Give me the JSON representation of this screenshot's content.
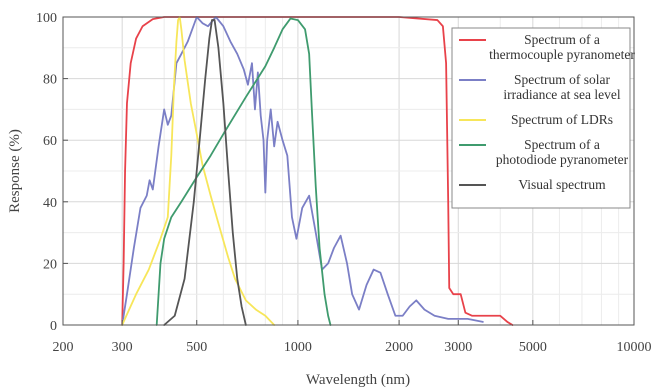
{
  "chart_data": {
    "type": "line",
    "xscale": "log",
    "xlim": [
      200,
      10000
    ],
    "ylim": [
      0,
      100
    ],
    "xlabel": "Wavelength  (nm)",
    "ylabel": "Response (%)",
    "xticks": [
      200,
      300,
      500,
      1000,
      2000,
      3000,
      5000,
      10000
    ],
    "xtick_labels": [
      "200",
      "300",
      "500",
      "1000",
      "2000",
      "3000",
      "5000",
      "10000"
    ],
    "yticks": [
      0,
      20,
      40,
      60,
      80,
      100
    ],
    "ytick_labels": [
      "0",
      "20",
      "40",
      "60",
      "80",
      "100"
    ],
    "grid": true,
    "legend_position": "top-right",
    "series": [
      {
        "name": "Spectrum of a thermocouple pyranometer",
        "legend_lines": [
          "Spectrum of a",
          "thermocouple pyranometer"
        ],
        "color": "#e8424a",
        "points": [
          [
            300,
            0
          ],
          [
            303,
            20
          ],
          [
            306,
            50
          ],
          [
            310,
            72
          ],
          [
            318,
            85
          ],
          [
            330,
            93
          ],
          [
            345,
            97
          ],
          [
            370,
            99.3
          ],
          [
            400,
            100
          ],
          [
            1000,
            100
          ],
          [
            2000,
            100
          ],
          [
            2600,
            99
          ],
          [
            2700,
            97
          ],
          [
            2760,
            85
          ],
          [
            2800,
            40
          ],
          [
            2820,
            12
          ],
          [
            2900,
            10
          ],
          [
            3050,
            10
          ],
          [
            3150,
            4
          ],
          [
            3300,
            3
          ],
          [
            3700,
            3
          ],
          [
            4000,
            3
          ],
          [
            4200,
            1
          ],
          [
            4350,
            0
          ]
        ]
      },
      {
        "name": "Spectrum of solar irradiance at sea level",
        "legend_lines": [
          "Spectrum of solar",
          "irradiance at sea level"
        ],
        "color": "#7b7fc6",
        "points": [
          [
            300,
            0
          ],
          [
            310,
            10
          ],
          [
            325,
            25
          ],
          [
            340,
            38
          ],
          [
            355,
            42
          ],
          [
            362,
            47
          ],
          [
            370,
            44
          ],
          [
            385,
            58
          ],
          [
            400,
            70
          ],
          [
            410,
            65
          ],
          [
            420,
            68
          ],
          [
            435,
            85
          ],
          [
            450,
            88
          ],
          [
            470,
            92
          ],
          [
            500,
            100
          ],
          [
            520,
            98
          ],
          [
            540,
            97
          ],
          [
            570,
            100
          ],
          [
            600,
            97
          ],
          [
            630,
            92
          ],
          [
            660,
            88
          ],
          [
            690,
            83
          ],
          [
            710,
            78
          ],
          [
            730,
            85
          ],
          [
            745,
            70
          ],
          [
            760,
            82
          ],
          [
            775,
            68
          ],
          [
            790,
            60
          ],
          [
            800,
            43
          ],
          [
            810,
            60
          ],
          [
            830,
            70
          ],
          [
            850,
            58
          ],
          [
            870,
            66
          ],
          [
            900,
            60
          ],
          [
            930,
            55
          ],
          [
            960,
            35
          ],
          [
            990,
            28
          ],
          [
            1030,
            38
          ],
          [
            1080,
            42
          ],
          [
            1130,
            30
          ],
          [
            1180,
            18
          ],
          [
            1230,
            20
          ],
          [
            1280,
            25
          ],
          [
            1340,
            29
          ],
          [
            1400,
            20
          ],
          [
            1450,
            10
          ],
          [
            1520,
            5
          ],
          [
            1600,
            13
          ],
          [
            1680,
            18
          ],
          [
            1760,
            17
          ],
          [
            1850,
            10
          ],
          [
            1950,
            3
          ],
          [
            2050,
            3
          ],
          [
            2150,
            6
          ],
          [
            2250,
            8
          ],
          [
            2380,
            5
          ],
          [
            2550,
            3
          ],
          [
            2800,
            2
          ],
          [
            3200,
            2
          ],
          [
            3550,
            1
          ]
        ]
      },
      {
        "name": "Spectrum of LDRs",
        "legend_lines": [
          "Spectrum of LDRs"
        ],
        "color": "#f7e65a",
        "points": [
          [
            300,
            0
          ],
          [
            330,
            10
          ],
          [
            360,
            18
          ],
          [
            390,
            28
          ],
          [
            410,
            35
          ],
          [
            420,
            55
          ],
          [
            428,
            78
          ],
          [
            435,
            92
          ],
          [
            440,
            99
          ],
          [
            445,
            100
          ],
          [
            450,
            96
          ],
          [
            460,
            86
          ],
          [
            480,
            72
          ],
          [
            500,
            62
          ],
          [
            520,
            52
          ],
          [
            550,
            42
          ],
          [
            580,
            33
          ],
          [
            620,
            22
          ],
          [
            650,
            15
          ],
          [
            700,
            8
          ],
          [
            750,
            5
          ],
          [
            800,
            3
          ],
          [
            850,
            0
          ]
        ]
      },
      {
        "name": "Spectrum of a photodiode pyranometer",
        "legend_lines": [
          "Spectrum of a",
          "photodiode pyranometer"
        ],
        "color": "#3f9b6e",
        "points": [
          [
            380,
            0
          ],
          [
            390,
            20
          ],
          [
            400,
            28
          ],
          [
            420,
            35
          ],
          [
            450,
            40
          ],
          [
            500,
            48
          ],
          [
            550,
            55
          ],
          [
            600,
            62
          ],
          [
            700,
            74
          ],
          [
            800,
            84
          ],
          [
            850,
            90
          ],
          [
            900,
            96
          ],
          [
            950,
            99.5
          ],
          [
            1000,
            99
          ],
          [
            1050,
            96
          ],
          [
            1080,
            88
          ],
          [
            1100,
            70
          ],
          [
            1130,
            45
          ],
          [
            1160,
            25
          ],
          [
            1200,
            10
          ],
          [
            1230,
            3
          ],
          [
            1250,
            0
          ]
        ]
      },
      {
        "name": "Visual spectrum",
        "legend_lines": [
          "Visual spectrum"
        ],
        "color": "#555555",
        "points": [
          [
            400,
            0
          ],
          [
            430,
            3
          ],
          [
            460,
            15
          ],
          [
            490,
            40
          ],
          [
            510,
            60
          ],
          [
            530,
            80
          ],
          [
            545,
            93
          ],
          [
            555,
            99
          ],
          [
            565,
            99
          ],
          [
            580,
            90
          ],
          [
            600,
            72
          ],
          [
            620,
            50
          ],
          [
            640,
            30
          ],
          [
            660,
            15
          ],
          [
            680,
            6
          ],
          [
            700,
            0
          ]
        ]
      }
    ]
  }
}
